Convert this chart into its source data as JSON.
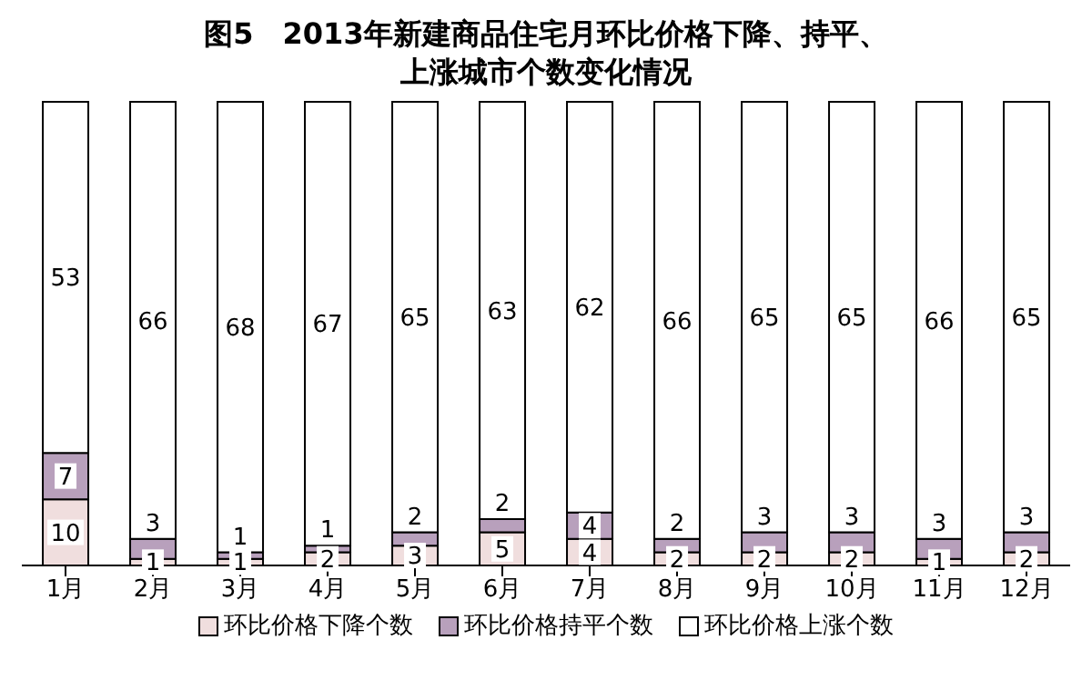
{
  "chart_data": {
    "type": "bar",
    "title": "图5　2013年新建商品住宅月环比价格下降、持平、上涨城市个数变化情况",
    "categories": [
      "1月",
      "2月",
      "3月",
      "4月",
      "5月",
      "6月",
      "7月",
      "8月",
      "9月",
      "10月",
      "11月",
      "12月"
    ],
    "stacked": true,
    "data_labels": true,
    "legend": "bottom",
    "series": [
      {
        "name": "环比价格下降个数",
        "color": "#f0dede",
        "values": [
          10,
          1,
          1,
          2,
          3,
          5,
          4,
          2,
          2,
          2,
          1,
          2
        ]
      },
      {
        "name": "环比价格持平个数",
        "color": "#b8a0bc",
        "values": [
          7,
          3,
          1,
          1,
          2,
          2,
          4,
          2,
          3,
          3,
          3,
          3
        ]
      },
      {
        "name": "环比价格上涨个数",
        "color": "#ffffff",
        "values": [
          53,
          66,
          68,
          67,
          65,
          63,
          62,
          66,
          65,
          65,
          66,
          65
        ]
      }
    ]
  }
}
